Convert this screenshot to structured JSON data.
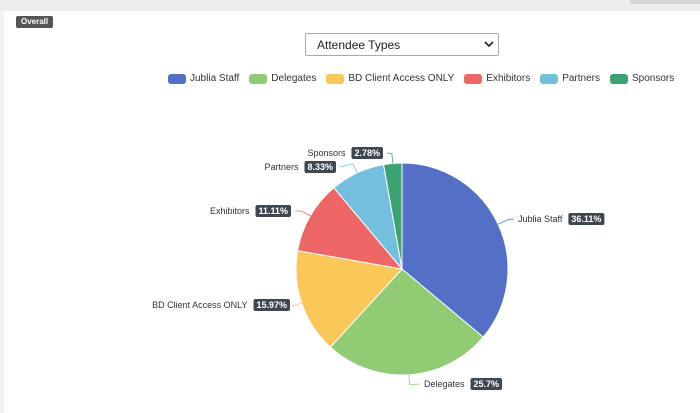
{
  "header": {
    "badge": "Overall"
  },
  "selector": {
    "value": "Attendee Types"
  },
  "chart_data": {
    "type": "pie",
    "title": "",
    "legend_position": "top",
    "slices": [
      {
        "name": "Jublia Staff",
        "value": 36.11,
        "label": "36.11%",
        "color": "#5470c6"
      },
      {
        "name": "Delegates",
        "value": 25.7,
        "label": "25.7%",
        "color": "#91cc75"
      },
      {
        "name": "BD Client Access ONLY",
        "value": 15.97,
        "label": "15.97%",
        "color": "#fac858"
      },
      {
        "name": "Exhibitors",
        "value": 11.11,
        "label": "11.11%",
        "color": "#ee6666"
      },
      {
        "name": "Partners",
        "value": 8.33,
        "label": "8.33%",
        "color": "#73c0de"
      },
      {
        "name": "Sponsors",
        "value": 2.78,
        "label": "2.78%",
        "color": "#3ba272"
      }
    ]
  }
}
